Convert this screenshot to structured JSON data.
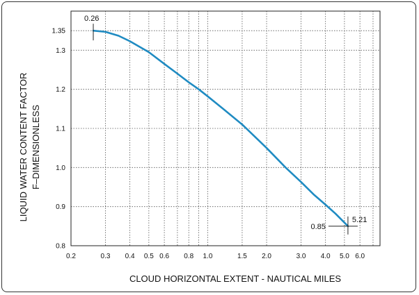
{
  "chart_data": {
    "type": "line",
    "xlabel": "CLOUD HORIZONTAL EXTENT - NAUTICAL MILES",
    "ylabel_lines": [
      "LIQUID WATER CONTENT FACTOR",
      "F–DIMENSIONLESS"
    ],
    "x_scale": "log",
    "xlim": [
      0.2,
      7.6
    ],
    "ylim": [
      0.8,
      1.4
    ],
    "grid": true,
    "x_ticks": [
      {
        "value": 0.2,
        "label": "0.2"
      },
      {
        "value": 0.3,
        "label": "0.3"
      },
      {
        "value": 0.4,
        "label": "0.4"
      },
      {
        "value": 0.5,
        "label": "0.5"
      },
      {
        "value": 0.6,
        "label": "0.6"
      },
      {
        "value": 0.8,
        "label": "0.8"
      },
      {
        "value": 1.0,
        "label": "1.0"
      },
      {
        "value": 1.5,
        "label": "1.5"
      },
      {
        "value": 2.0,
        "label": "2.0"
      },
      {
        "value": 3.0,
        "label": "3.0"
      },
      {
        "value": 4.0,
        "label": "4.0"
      },
      {
        "value": 5.0,
        "label": "5.0"
      },
      {
        "value": 6.0,
        "label": "6.0"
      }
    ],
    "x_minor_grid": [
      0.7,
      0.9,
      7.0
    ],
    "y_ticks": [
      {
        "value": 0.8,
        "label": "0.8"
      },
      {
        "value": 0.9,
        "label": "0.9"
      },
      {
        "value": 1.0,
        "label": "1.0"
      },
      {
        "value": 1.1,
        "label": "1.1"
      },
      {
        "value": 1.2,
        "label": "1.2"
      },
      {
        "value": 1.3,
        "label": "1.3"
      },
      {
        "value": 1.35,
        "label": "1.35"
      }
    ],
    "series": [
      {
        "color": "#1f8bc2",
        "x": [
          0.26,
          0.3,
          0.35,
          0.4,
          0.5,
          0.6,
          0.7,
          0.8,
          0.9,
          1.0,
          1.2,
          1.5,
          2.0,
          2.5,
          3.0,
          3.5,
          4.0,
          4.5,
          5.21
        ],
        "y": [
          1.35,
          1.347,
          1.337,
          1.323,
          1.295,
          1.265,
          1.24,
          1.218,
          1.2,
          1.182,
          1.15,
          1.11,
          1.05,
          1.0,
          0.963,
          0.93,
          0.905,
          0.882,
          0.85
        ]
      }
    ],
    "annotations": [
      {
        "text": "0.26",
        "x": 0.26,
        "y": 1.35,
        "position": "above"
      },
      {
        "text": "0.85",
        "x": 5.21,
        "y": 0.85,
        "position": "left"
      },
      {
        "text": "5.21",
        "x": 5.21,
        "y": 0.85,
        "position": "above-right"
      }
    ]
  }
}
